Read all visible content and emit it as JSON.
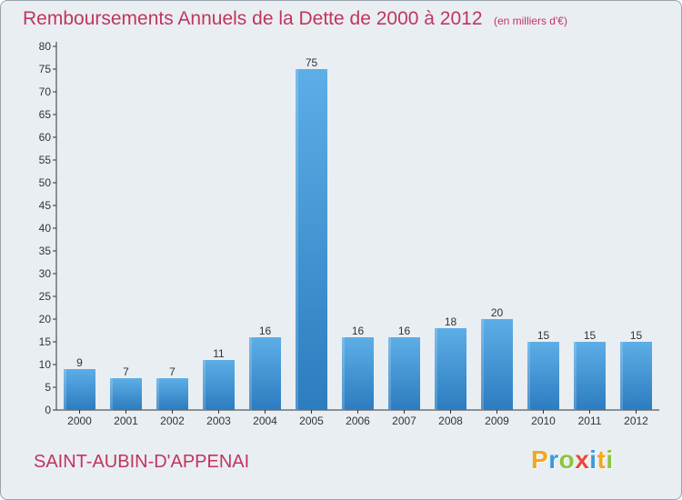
{
  "header": {
    "title": "Remboursements Annuels de la Dette de 2000 à 2012",
    "unit": "(en milliers d'€)"
  },
  "commune": "SAINT-AUBIN-D'APPENAI",
  "logo": {
    "letters": [
      "P",
      "r",
      "o",
      "x",
      "i",
      "t",
      "i"
    ],
    "colors": [
      "#f0a81c",
      "#3c9ad6",
      "#8cc63f",
      "#e8493a",
      "#3c9ad6",
      "#f0a81c",
      "#8cc63f"
    ]
  },
  "colors": {
    "bar_light": "#5daee6",
    "bar_dark": "#2c7cc0",
    "title": "#c0355e",
    "background": "#e9eef3"
  },
  "chart_data": {
    "type": "bar",
    "categories": [
      "2000",
      "2001",
      "2002",
      "2003",
      "2004",
      "2005",
      "2006",
      "2007",
      "2008",
      "2009",
      "2010",
      "2011",
      "2012"
    ],
    "values": [
      9,
      7,
      7,
      11,
      16,
      75,
      16,
      16,
      18,
      20,
      15,
      15,
      15
    ],
    "yticks": [
      0,
      5,
      10,
      15,
      20,
      25,
      30,
      35,
      40,
      45,
      50,
      55,
      60,
      65,
      70,
      75,
      80
    ],
    "ylim": [
      0,
      80
    ],
    "grid": false
  }
}
